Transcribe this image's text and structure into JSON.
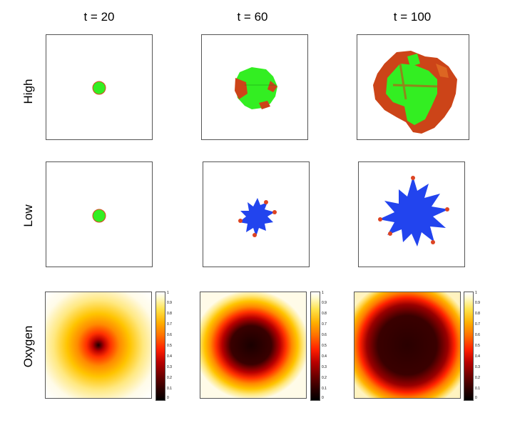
{
  "column_titles": [
    "t = 20",
    "t = 60",
    "t = 100"
  ],
  "row_labels": [
    "High",
    "Low",
    "Oxygen"
  ],
  "colorbar_ticks": [
    "1",
    "0.9",
    "0.8",
    "0.7",
    "0.6",
    "0.5",
    "0.4",
    "0.3",
    "0.2",
    "0.1",
    "0"
  ],
  "legend_colors": {
    "proliferating": "#33ee22",
    "quiescent": "#dd4422",
    "dead_blue": "#2244ee"
  }
}
